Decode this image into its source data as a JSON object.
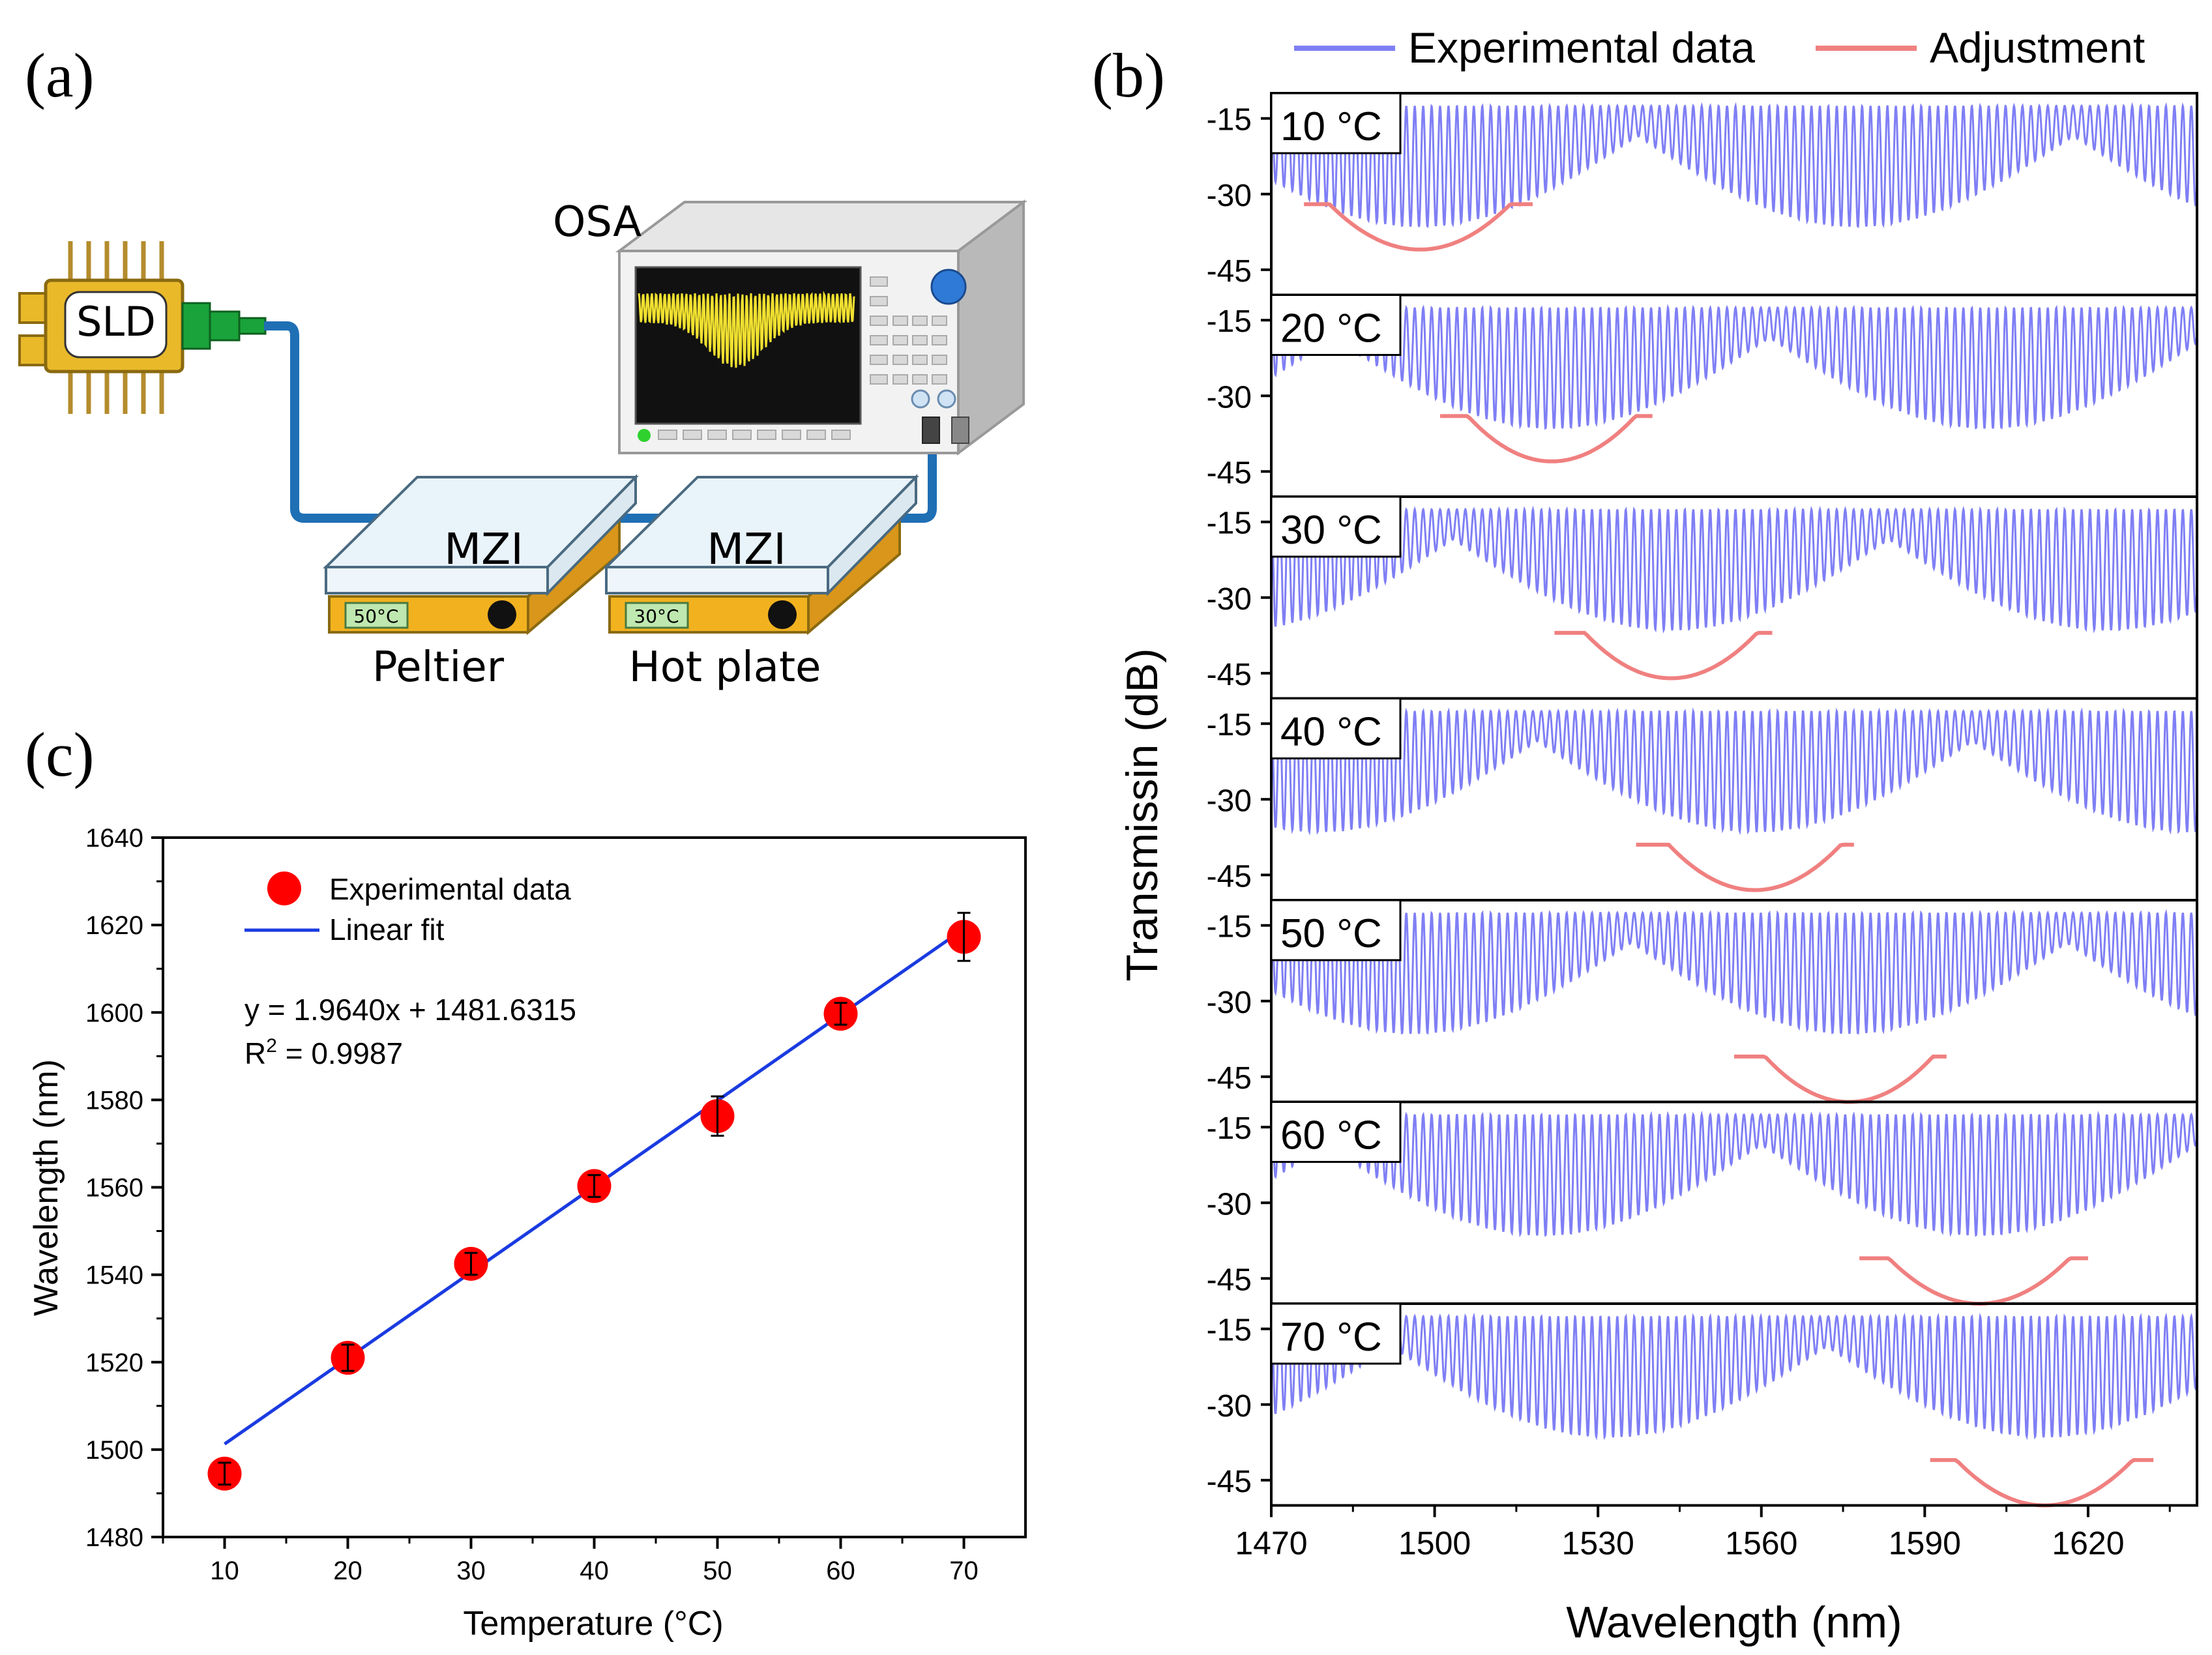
{
  "panel_a": {
    "label": "(a)",
    "sld_label": "SLD",
    "osa_label": "OSA",
    "mzi_label_1": "MZI",
    "mzi_label_2": "MZI",
    "peltier_temp": "50°C",
    "hotplate_temp": "30°C",
    "peltier_label": "Peltier",
    "hotplate_label": "Hot plate",
    "colors": {
      "fiber": "#1f6fb5",
      "stage": "#f2b21f",
      "screen_trace": "#f0e030",
      "sld_body": "#e9b92a",
      "connector": "#1aa33a"
    }
  },
  "chart_data": [
    {
      "id": "b",
      "type": "line",
      "label": "(b)",
      "legend": [
        "Experimental data",
        "Adjustment"
      ],
      "legend_colors": [
        "#7f7ff5",
        "#f08080"
      ],
      "xlabel": "Wavelength (nm)",
      "ylabel": "Transmissin (dB)",
      "xlim": [
        1470,
        1640
      ],
      "xticks": [
        1470,
        1500,
        1530,
        1560,
        1590,
        1620
      ],
      "ylim": [
        -50,
        -10
      ],
      "yticks": [
        -15,
        -30,
        -45
      ],
      "ytick_labels": [
        "-15",
        "-30",
        "-45"
      ],
      "panels": [
        {
          "temp": "10 °C",
          "dip_center": 1497.3,
          "fit_range": [
            1476,
            1518
          ],
          "dip_depth": -41
        },
        {
          "temp": "20 °C",
          "dip_center": 1521.5,
          "fit_range": [
            1501,
            1540
          ],
          "dip_depth": -43
        },
        {
          "temp": "30 °C",
          "dip_center": 1543.4,
          "fit_range": [
            1522,
            1562
          ],
          "dip_depth": -46
        },
        {
          "temp": "40 °C",
          "dip_center": 1558.8,
          "fit_range": [
            1537,
            1577
          ],
          "dip_depth": -48
        },
        {
          "temp": "50 °C",
          "dip_center": 1576.1,
          "fit_range": [
            1555,
            1594
          ],
          "dip_depth": -50
        },
        {
          "temp": "60 °C",
          "dip_center": 1600.0,
          "fit_range": [
            1578,
            1620
          ],
          "dip_depth": -50
        },
        {
          "temp": "70 °C",
          "dip_center": 1612.0,
          "fit_range": [
            1591,
            1632
          ],
          "dip_depth": -50
        }
      ]
    },
    {
      "id": "c",
      "type": "scatter",
      "label": "(c)",
      "xlabel": "Temperature (°C)",
      "ylabel": "Wavelength (nm)",
      "xlim": [
        5,
        75
      ],
      "ylim": [
        1480,
        1640
      ],
      "xticks": [
        10,
        20,
        30,
        40,
        50,
        60,
        70
      ],
      "yticks": [
        1480,
        1500,
        1520,
        1540,
        1560,
        1580,
        1600,
        1620,
        1640
      ],
      "series": [
        {
          "name": "Experimental data",
          "color": "#ff0000",
          "x": [
            10,
            20,
            30,
            40,
            50,
            60,
            70
          ],
          "y": [
            1494.5,
            1521.0,
            1542.5,
            1560.3,
            1576.3,
            1599.7,
            1617.3
          ],
          "err": [
            2.5,
            3.0,
            2.5,
            2.5,
            4.5,
            2.5,
            5.5
          ]
        },
        {
          "name": "Linear fit",
          "color": "#1a3be0",
          "slope": 1.964,
          "intercept": 1481.6315,
          "x_range": [
            10,
            70
          ]
        }
      ],
      "equation": "y = 1.9640x + 1481.6315",
      "r2_prefix": "R",
      "r2_sup": "2",
      "r2_suffix": " = 0.9987"
    }
  ]
}
